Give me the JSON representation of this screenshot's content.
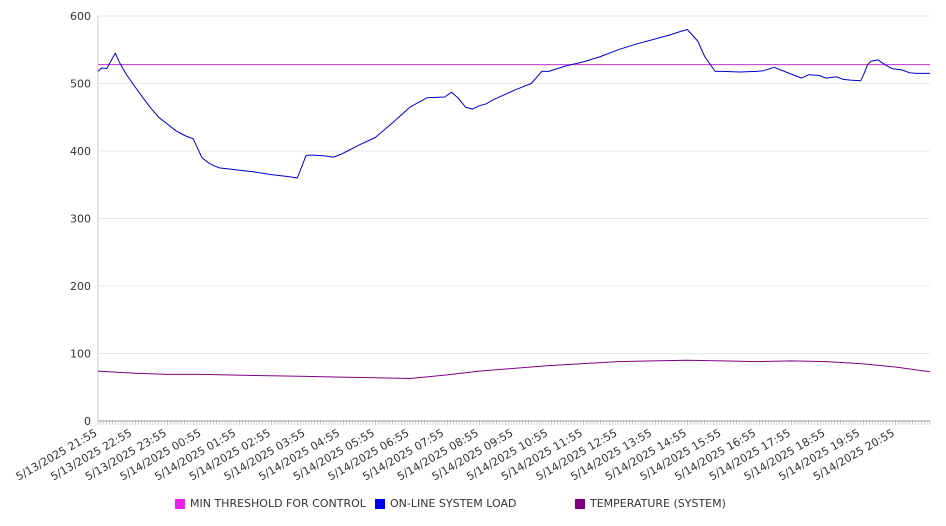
{
  "chart_data": {
    "type": "line",
    "title": "",
    "xlabel": "",
    "ylabel": "",
    "ylim": [
      0,
      600
    ],
    "yticks": [
      0,
      100,
      200,
      300,
      400,
      500,
      600
    ],
    "grid": true,
    "legend_position": "bottom",
    "x_tick_labels": [
      "5/13/2025 21:55",
      "5/13/2025 22:55",
      "5/13/2025 23:55",
      "5/14/2025 00:55",
      "5/14/2025 01:55",
      "5/14/2025 02:55",
      "5/14/2025 03:55",
      "5/14/2025 04:55",
      "5/14/2025 05:55",
      "5/14/2025 06:55",
      "5/14/2025 07:55",
      "5/14/2025 08:55",
      "5/14/2025 09:55",
      "5/14/2025 10:55",
      "5/14/2025 11:55",
      "5/14/2025 12:55",
      "5/14/2025 13:55",
      "5/14/2025 14:55",
      "5/14/2025 15:55",
      "5/14/2025 16:55",
      "5/14/2025 17:55",
      "5/14/2025 18:55",
      "5/14/2025 19:55",
      "5/14/2025 20:55"
    ],
    "x_hours": [
      0,
      0.25,
      0.5,
      0.75,
      1,
      1.5,
      2,
      2.5,
      3,
      3.5,
      4,
      4.5,
      5,
      5.5,
      6,
      6.5,
      7,
      7.5,
      8,
      8.5,
      9,
      9.5,
      10,
      10.5,
      11,
      11.5,
      12,
      12.5,
      13,
      13.5,
      14,
      14.5,
      15,
      15.5,
      16,
      16.5,
      17,
      17.5,
      18,
      18.5,
      19,
      19.5,
      20,
      20.5,
      21,
      21.5,
      22,
      22.5,
      23,
      23.5,
      24
    ],
    "series": [
      {
        "name": "MIN THRESHOLD FOR CONTROL",
        "color": "#cc33cc",
        "legend_color": "#ee22ee",
        "x": [
          0,
          24
        ],
        "values": [
          528,
          528
        ]
      },
      {
        "name": "ON-LINE SYSTEM LOAD",
        "color": "#0000cc",
        "legend_color": "#0000ee",
        "x": [
          0,
          0.1,
          0.25,
          0.5,
          0.6,
          0.8,
          1,
          1.25,
          1.5,
          1.75,
          2,
          2.25,
          2.5,
          2.75,
          3,
          3.2,
          3.35,
          3.5,
          4,
          4.5,
          5,
          5.5,
          5.75,
          6,
          6.1,
          6.2,
          6.5,
          6.8,
          7,
          7.2,
          7.5,
          8,
          8.5,
          9,
          9.5,
          10,
          10.2,
          10.4,
          10.6,
          10.8,
          11,
          11.2,
          11.4,
          11.8,
          12,
          12.5,
          12.8,
          13,
          13.5,
          14,
          14.5,
          15,
          15.5,
          16,
          16.5,
          16.8,
          17,
          17.3,
          17.5,
          17.8,
          18,
          18.5,
          19,
          19.2,
          19.5,
          19.8,
          20,
          20.3,
          20.5,
          20.8,
          21,
          21.3,
          21.5,
          21.7,
          22,
          22.1,
          22.2,
          22.3,
          22.5,
          22.7,
          22.9,
          23.2,
          23.4,
          23.6,
          24
        ],
        "values": [
          518,
          523,
          522,
          545,
          533,
          515,
          500,
          482,
          465,
          450,
          440,
          430,
          423,
          418,
          390,
          382,
          378,
          375,
          372,
          369,
          365,
          362,
          360,
          393,
          394,
          394,
          393,
          391,
          395,
          400,
          408,
          420,
          442,
          465,
          479,
          480,
          487,
          478,
          465,
          462,
          467,
          470,
          476,
          485,
          490,
          500,
          518,
          518,
          526,
          532,
          540,
          550,
          558,
          565,
          572,
          577,
          580,
          563,
          540,
          518,
          518,
          517,
          518,
          519,
          524,
          518,
          514,
          508,
          513,
          512,
          508,
          510,
          506,
          505,
          504,
          515,
          528,
          533,
          535,
          528,
          522,
          520,
          516,
          515,
          515
        ],
        "x_limit_note": ""
      },
      {
        "name": "TEMPERATURE (SYSTEM)",
        "color": "#800080",
        "legend_color": "#800080",
        "x": [
          0,
          1,
          2,
          3,
          4,
          5,
          6,
          7,
          8,
          9,
          10,
          11,
          12,
          13,
          14,
          15,
          16,
          17,
          18,
          19,
          20,
          21,
          22,
          23,
          24
        ],
        "values": [
          74,
          71,
          69,
          69,
          68,
          67,
          66,
          65,
          64,
          63,
          68,
          74,
          78,
          82,
          85,
          88,
          89,
          90,
          89,
          88,
          89,
          88,
          85,
          80,
          73
        ]
      }
    ]
  }
}
